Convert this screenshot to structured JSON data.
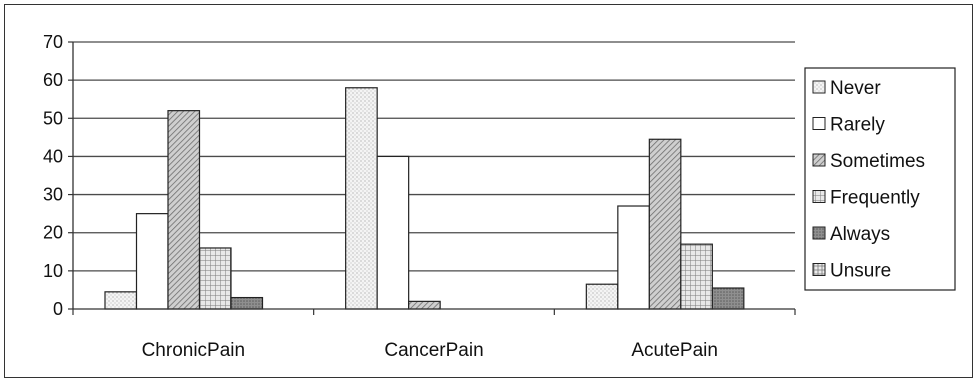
{
  "chart_data": {
    "type": "bar",
    "title": "",
    "xlabel": "",
    "ylabel": "",
    "ylim": [
      0,
      70
    ],
    "yticks": [
      0,
      10,
      20,
      30,
      40,
      50,
      60,
      70
    ],
    "grid": true,
    "legend_position": "right",
    "categories": [
      "ChronicPain",
      "CancerPain",
      "AcutePain"
    ],
    "series": [
      {
        "name": "Never",
        "values": [
          4.5,
          58,
          6.5
        ],
        "fill": "#eeeeee",
        "pattern": "dots"
      },
      {
        "name": "Rarely",
        "values": [
          25,
          40,
          27
        ],
        "fill": "#ffffff",
        "pattern": "none"
      },
      {
        "name": "Sometimes",
        "values": [
          52,
          2,
          44.5
        ],
        "fill": "#bdbdbd",
        "pattern": "diagonal"
      },
      {
        "name": "Frequently",
        "values": [
          16,
          0,
          17
        ],
        "fill": "#d9d9d9",
        "pattern": "grid"
      },
      {
        "name": "Always",
        "values": [
          3,
          0,
          5.5
        ],
        "fill": "#9a9a9a",
        "pattern": "dense"
      },
      {
        "name": "Unsure",
        "values": [
          0,
          0,
          0
        ],
        "fill": "#e6e6e6",
        "pattern": "plus"
      }
    ]
  }
}
